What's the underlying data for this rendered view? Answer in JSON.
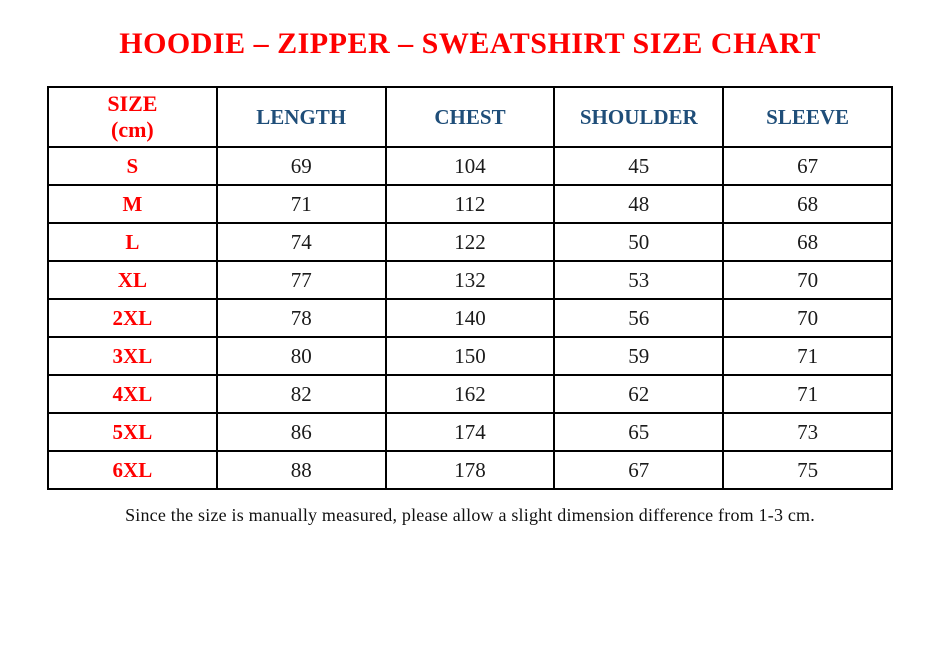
{
  "page": {
    "top_mark": "."
  },
  "title": "HOODIE – ZIPPER – SWEATSHIRT SIZE CHART",
  "colors": {
    "title_red": "#fe0000",
    "header_blue": "#1f4e79",
    "border_black": "#000000",
    "background": "#ffffff"
  },
  "table": {
    "columns": {
      "size": "SIZE\n(cm)",
      "measurements": [
        "LENGTH",
        "CHEST",
        "SHOULDER",
        "SLEEVE"
      ]
    },
    "rows": [
      {
        "size": "S",
        "values": [
          "69",
          "104",
          "45",
          "67"
        ]
      },
      {
        "size": "M",
        "values": [
          "71",
          "112",
          "48",
          "68"
        ]
      },
      {
        "size": "L",
        "values": [
          "74",
          "122",
          "50",
          "68"
        ]
      },
      {
        "size": "XL",
        "values": [
          "77",
          "132",
          "53",
          "70"
        ]
      },
      {
        "size": "2XL",
        "values": [
          "78",
          "140",
          "56",
          "70"
        ]
      },
      {
        "size": "3XL",
        "values": [
          "80",
          "150",
          "59",
          "71"
        ]
      },
      {
        "size": "4XL",
        "values": [
          "82",
          "162",
          "62",
          "71"
        ]
      },
      {
        "size": "5XL",
        "values": [
          "86",
          "174",
          "65",
          "73"
        ]
      },
      {
        "size": "6XL",
        "values": [
          "88",
          "178",
          "67",
          "75"
        ]
      }
    ]
  },
  "footnote": "Since the size is manually measured, please allow a slight dimension difference from 1-3 cm.",
  "chart_data": {
    "type": "table",
    "title": "HOODIE – ZIPPER – SWEATSHIRT SIZE CHART",
    "unit": "cm",
    "columns": [
      "SIZE (cm)",
      "LENGTH",
      "CHEST",
      "SHOULDER",
      "SLEEVE"
    ],
    "rows": [
      [
        "S",
        69,
        104,
        45,
        67
      ],
      [
        "M",
        71,
        112,
        48,
        68
      ],
      [
        "L",
        74,
        122,
        50,
        68
      ],
      [
        "XL",
        77,
        132,
        53,
        70
      ],
      [
        "2XL",
        78,
        140,
        56,
        70
      ],
      [
        "3XL",
        80,
        150,
        59,
        71
      ],
      [
        "4XL",
        82,
        162,
        62,
        71
      ],
      [
        "5XL",
        86,
        174,
        65,
        73
      ],
      [
        "6XL",
        88,
        178,
        67,
        75
      ]
    ],
    "note": "Since the size is manually measured, please allow a slight dimension difference from 1-3 cm."
  }
}
